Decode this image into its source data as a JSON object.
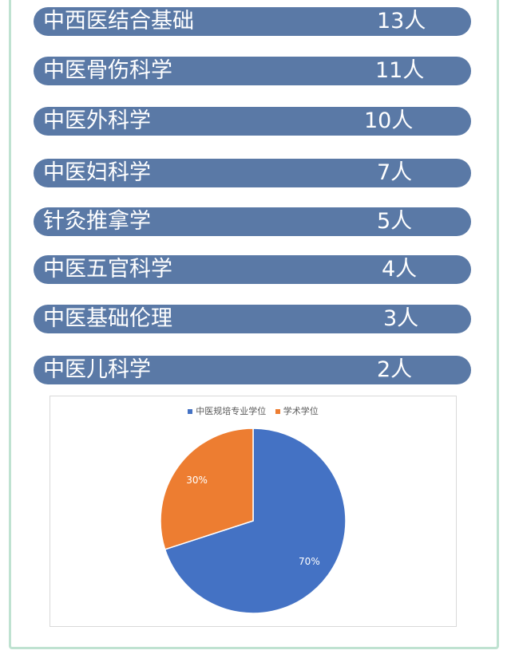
{
  "majors": [
    {
      "name": "中西医结合基础",
      "count": "13人"
    },
    {
      "name": "中医骨伤科学",
      "count": "11人"
    },
    {
      "name": "中医外科学",
      "count": "10人"
    },
    {
      "name": "中医妇科学",
      "count": "7人"
    },
    {
      "name": "针灸推拿学",
      "count": "5人"
    },
    {
      "name": "中医五官科学",
      "count": "4人"
    },
    {
      "name": "中医基础伦理",
      "count": "3人"
    },
    {
      "name": "中医儿科学",
      "count": "2人"
    }
  ],
  "colors": {
    "pill": "#5a79a6",
    "frame": "#bfe2d1",
    "series1": "#4472c4",
    "series2": "#ed7d31"
  },
  "chart_data": {
    "type": "pie",
    "categories": [
      "中医规培专业学位",
      "学术学位"
    ],
    "values": [
      70,
      30
    ],
    "data_labels": [
      "70%",
      "30%"
    ],
    "title": "",
    "legend": "top"
  }
}
